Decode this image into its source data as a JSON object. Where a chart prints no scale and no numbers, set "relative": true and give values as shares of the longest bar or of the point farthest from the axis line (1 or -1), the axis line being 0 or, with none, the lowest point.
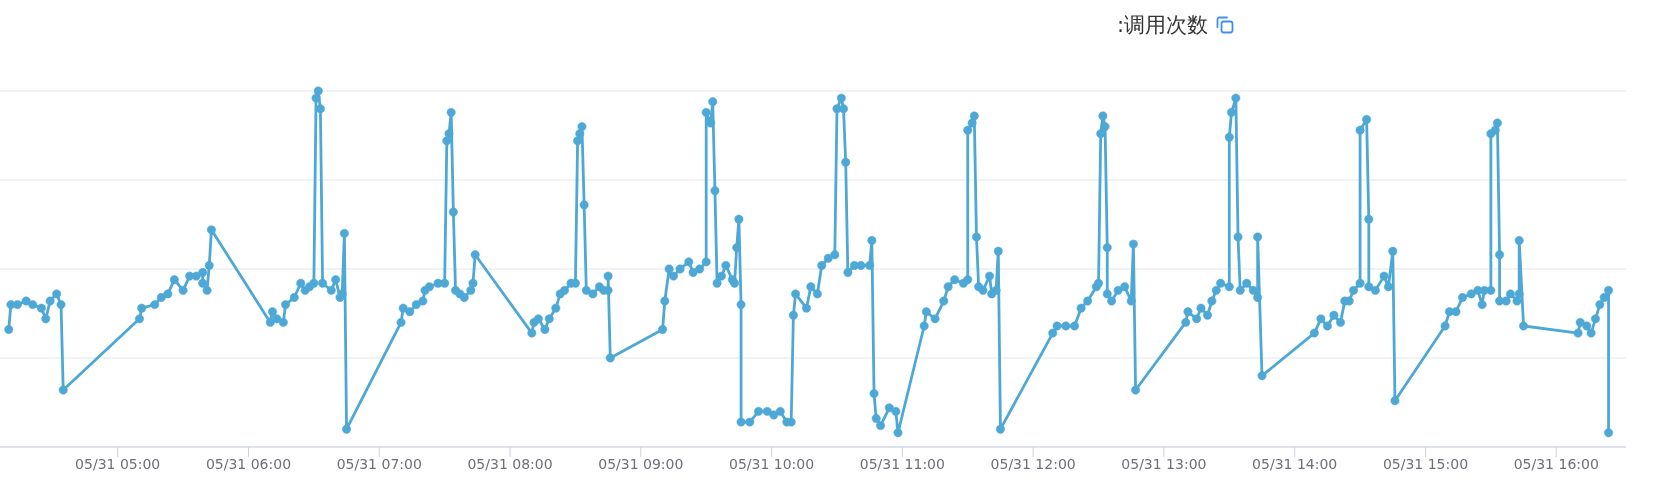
{
  "chart_data": {
    "type": "line",
    "title": ":调用次数",
    "relative": true,
    "color": "#4ea8d6",
    "marker": "circle",
    "line_style": "solid",
    "grid": "y",
    "xlim": [
      "--05-31T04:06",
      "--05-31T16:32"
    ],
    "xticks": [
      {
        "value": "--05-31T05:00",
        "label": "05/31 05:00"
      },
      {
        "value": "--05-31T06:00",
        "label": "05/31 06:00"
      },
      {
        "value": "--05-31T07:00",
        "label": "05/31 07:00"
      },
      {
        "value": "--05-31T08:00",
        "label": "05/31 08:00"
      },
      {
        "value": "--05-31T09:00",
        "label": "05/31 09:00"
      },
      {
        "value": "--05-31T10:00",
        "label": "05/31 10:00"
      },
      {
        "value": "--05-31T11:00",
        "label": "05/31 11:00"
      },
      {
        "value": "--05-31T12:00",
        "label": "05/31 12:00"
      },
      {
        "value": "--05-31T13:00",
        "label": "05/31 13:00"
      },
      {
        "value": "--05-31T14:00",
        "label": "05/31 14:00"
      },
      {
        "value": "--05-31T15:00",
        "label": "05/31 15:00"
      },
      {
        "value": "--05-31T16:00",
        "label": "05/31 16:00"
      }
    ],
    "x": [
      "--05-31T04:10",
      "--05-31T04:11",
      "--05-31T04:14",
      "--05-31T04:18",
      "--05-31T04:21",
      "--05-31T04:25",
      "--05-31T04:27",
      "--05-31T04:29",
      "--05-31T04:32",
      "--05-31T04:34",
      "--05-31T04:35",
      "--05-31T05:10",
      "--05-31T05:11",
      "--05-31T05:17",
      "--05-31T05:20",
      "--05-31T05:23",
      "--05-31T05:26",
      "--05-31T05:30",
      "--05-31T05:33",
      "--05-31T05:36",
      "--05-31T05:39",
      "--05-31T05:39",
      "--05-31T05:41",
      "--05-31T05:42",
      "--05-31T05:43",
      "--05-31T06:10",
      "--05-31T06:11",
      "--05-31T06:13",
      "--05-31T06:16",
      "--05-31T06:17",
      "--05-31T06:21",
      "--05-31T06:24",
      "--05-31T06:26",
      "--05-31T06:28",
      "--05-31T06:30",
      "--05-31T06:31",
      "--05-31T06:32",
      "--05-31T06:33",
      "--05-31T06:34",
      "--05-31T06:38",
      "--05-31T06:40",
      "--05-31T06:42",
      "--05-31T06:43",
      "--05-31T06:44",
      "--05-31T06:45",
      "--05-31T07:10",
      "--05-31T07:11",
      "--05-31T07:14",
      "--05-31T07:17",
      "--05-31T07:20",
      "--05-31T07:21",
      "--05-31T07:23",
      "--05-31T07:27",
      "--05-31T07:30",
      "--05-31T07:31",
      "--05-31T07:32",
      "--05-31T07:33",
      "--05-31T07:34",
      "--05-31T07:35",
      "--05-31T07:37",
      "--05-31T07:39",
      "--05-31T07:42",
      "--05-31T07:43",
      "--05-31T07:44",
      "--05-31T08:10",
      "--05-31T08:11",
      "--05-31T08:13",
      "--05-31T08:16",
      "--05-31T08:18",
      "--05-31T08:21",
      "--05-31T08:23",
      "--05-31T08:25",
      "--05-31T08:28",
      "--05-31T08:30",
      "--05-31T08:31",
      "--05-31T08:32",
      "--05-31T08:33",
      "--05-31T08:34",
      "--05-31T08:35",
      "--05-31T08:38",
      "--05-31T08:41",
      "--05-31T08:43",
      "--05-31T08:45",
      "--05-31T08:45",
      "--05-31T08:46",
      "--05-31T09:10",
      "--05-31T09:11",
      "--05-31T09:13",
      "--05-31T09:15",
      "--05-31T09:18",
      "--05-31T09:22",
      "--05-31T09:24",
      "--05-31T09:27",
      "--05-31T09:30",
      "--05-31T09:30",
      "--05-31T09:32",
      "--05-31T09:33",
      "--05-31T09:34",
      "--05-31T09:35",
      "--05-31T09:37",
      "--05-31T09:39",
      "--05-31T09:42",
      "--05-31T09:43",
      "--05-31T09:44",
      "--05-31T09:45",
      "--05-31T09:46",
      "--05-31T09:46",
      "--05-31T09:50",
      "--05-31T09:54",
      "--05-31T09:58",
      "--05-31T10:01",
      "--05-31T10:04",
      "--05-31T10:07",
      "--05-31T10:09",
      "--05-31T10:10",
      "--05-31T10:11",
      "--05-31T10:16",
      "--05-31T10:18",
      "--05-31T10:21",
      "--05-31T10:23",
      "--05-31T10:26",
      "--05-31T10:29",
      "--05-31T10:30",
      "--05-31T10:32",
      "--05-31T10:33",
      "--05-31T10:34",
      "--05-31T10:35",
      "--05-31T10:38",
      "--05-31T10:41",
      "--05-31T10:45",
      "--05-31T10:46",
      "--05-31T10:47",
      "--05-31T10:48",
      "--05-31T10:50",
      "--05-31T10:54",
      "--05-31T10:57",
      "--05-31T10:58",
      "--05-31T11:10",
      "--05-31T11:11",
      "--05-31T11:15",
      "--05-31T11:19",
      "--05-31T11:21",
      "--05-31T11:24",
      "--05-31T11:28",
      "--05-31T11:30",
      "--05-31T11:30",
      "--05-31T11:32",
      "--05-31T11:33",
      "--05-31T11:34",
      "--05-31T11:35",
      "--05-31T11:37",
      "--05-31T11:40",
      "--05-31T11:41",
      "--05-31T11:43",
      "--05-31T11:44",
      "--05-31T11:45",
      "--05-31T12:09",
      "--05-31T12:11",
      "--05-31T12:15",
      "--05-31T12:19",
      "--05-31T12:22",
      "--05-31T12:25",
      "--05-31T12:29",
      "--05-31T12:30",
      "--05-31T12:31",
      "--05-31T12:32",
      "--05-31T12:33",
      "--05-31T12:34",
      "--05-31T12:34",
      "--05-31T12:36",
      "--05-31T12:39",
      "--05-31T12:42",
      "--05-31T12:45",
      "--05-31T12:46",
      "--05-31T12:47",
      "--05-31T13:10",
      "--05-31T13:11",
      "--05-31T13:15",
      "--05-31T13:17",
      "--05-31T13:20",
      "--05-31T13:22",
      "--05-31T13:24",
      "--05-31T13:26",
      "--05-31T13:30",
      "--05-31T13:30",
      "--05-31T13:31",
      "--05-31T13:33",
      "--05-31T13:34",
      "--05-31T13:35",
      "--05-31T13:38",
      "--05-31T13:41",
      "--05-31T13:43",
      "--05-31T13:43",
      "--05-31T13:45",
      "--05-31T14:09",
      "--05-31T14:12",
      "--05-31T14:15",
      "--05-31T14:18",
      "--05-31T14:21",
      "--05-31T14:23",
      "--05-31T14:25",
      "--05-31T14:27",
      "--05-31T14:30",
      "--05-31T14:30",
      "--05-31T14:33",
      "--05-31T14:34",
      "--05-31T14:34",
      "--05-31T14:37",
      "--05-31T14:41",
      "--05-31T14:43",
      "--05-31T14:45",
      "--05-31T14:46",
      "--05-31T15:09",
      "--05-31T15:11",
      "--05-31T15:14",
      "--05-31T15:17",
      "--05-31T15:21",
      "--05-31T15:24",
      "--05-31T15:26",
      "--05-31T15:27",
      "--05-31T15:30",
      "--05-31T15:30",
      "--05-31T15:32",
      "--05-31T15:33",
      "--05-31T15:34",
      "--05-31T15:34",
      "--05-31T15:37",
      "--05-31T15:39",
      "--05-31T15:42",
      "--05-31T15:43",
      "--05-31T15:43",
      "--05-31T15:45",
      "--05-31T16:10",
      "--05-31T16:11",
      "--05-31T16:14",
      "--05-31T16:16",
      "--05-31T16:18",
      "--05-31T16:20",
      "--05-31T16:22",
      "--05-31T16:24",
      "--05-31T16:24"
    ],
    "values": [
      0.33,
      0.4,
      0.4,
      0.41,
      0.4,
      0.39,
      0.36,
      0.41,
      0.43,
      0.4,
      0.16,
      0.36,
      0.39,
      0.4,
      0.42,
      0.43,
      0.47,
      0.44,
      0.48,
      0.48,
      0.49,
      0.46,
      0.44,
      0.51,
      0.61,
      0.35,
      0.38,
      0.36,
      0.35,
      0.4,
      0.42,
      0.46,
      0.44,
      0.45,
      0.46,
      0.98,
      1,
      0.95,
      0.46,
      0.44,
      0.47,
      0.42,
      0.43,
      0.6,
      0.05,
      0.35,
      0.39,
      0.38,
      0.4,
      0.41,
      0.44,
      0.45,
      0.46,
      0.46,
      0.86,
      0.88,
      0.94,
      0.66,
      0.44,
      0.43,
      0.42,
      0.44,
      0.46,
      0.54,
      0.32,
      0.35,
      0.36,
      0.33,
      0.36,
      0.39,
      0.43,
      0.44,
      0.46,
      0.46,
      0.86,
      0.88,
      0.9,
      0.68,
      0.44,
      0.43,
      0.45,
      0.44,
      0.44,
      0.48,
      0.25,
      0.33,
      0.41,
      0.5,
      0.48,
      0.5,
      0.52,
      0.49,
      0.5,
      0.52,
      0.94,
      0.91,
      0.97,
      0.72,
      0.46,
      0.48,
      0.51,
      0.47,
      0.46,
      0.56,
      0.64,
      0.4,
      0.07,
      0.07,
      0.1,
      0.1,
      0.09,
      0.1,
      0.07,
      0.07,
      0.37,
      0.43,
      0.39,
      0.45,
      0.43,
      0.51,
      0.53,
      0.54,
      0.95,
      0.98,
      0.95,
      0.8,
      0.49,
      0.51,
      0.51,
      0.51,
      0.58,
      0.15,
      0.08,
      0.06,
      0.11,
      0.1,
      0.04,
      0.34,
      0.38,
      0.36,
      0.41,
      0.45,
      0.47,
      0.46,
      0.47,
      0.89,
      0.91,
      0.93,
      0.59,
      0.45,
      0.44,
      0.48,
      0.43,
      0.44,
      0.55,
      0.05,
      0.32,
      0.34,
      0.34,
      0.34,
      0.39,
      0.41,
      0.45,
      0.46,
      0.88,
      0.93,
      0.9,
      0.56,
      0.43,
      0.41,
      0.44,
      0.45,
      0.41,
      0.57,
      0.16,
      0.35,
      0.38,
      0.36,
      0.39,
      0.37,
      0.41,
      0.44,
      0.46,
      0.45,
      0.87,
      0.94,
      0.98,
      0.59,
      0.44,
      0.46,
      0.44,
      0.42,
      0.59,
      0.2,
      0.32,
      0.36,
      0.34,
      0.37,
      0.35,
      0.41,
      0.41,
      0.44,
      0.46,
      0.89,
      0.92,
      0.64,
      0.45,
      0.44,
      0.48,
      0.45,
      0.55,
      0.13,
      0.34,
      0.38,
      0.38,
      0.42,
      0.43,
      0.44,
      0.4,
      0.44,
      0.44,
      0.88,
      0.89,
      0.91,
      0.54,
      0.41,
      0.41,
      0.43,
      0.41,
      0.43,
      0.58,
      0.34,
      0.32,
      0.35,
      0.34,
      0.32,
      0.36,
      0.4,
      0.42,
      0.44,
      0.04
    ]
  }
}
